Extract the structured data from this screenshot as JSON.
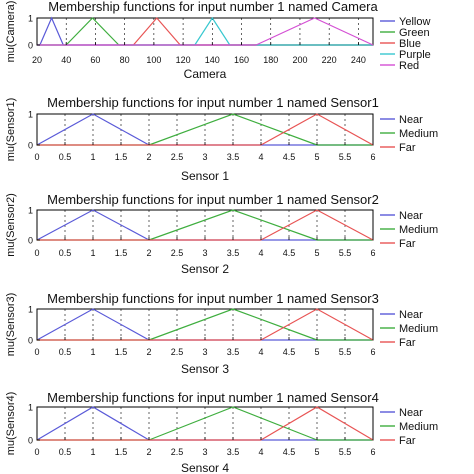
{
  "colors": {
    "yellow": "#5a5ad8",
    "green": "#3fae3f",
    "blue": "#e85454",
    "purple": "#38c8d0",
    "red": "#d450d4",
    "near": "#5a5ad8",
    "medium": "#3fae3f",
    "far": "#e85454"
  },
  "chart_data": [
    {
      "type": "line",
      "title": "Membership functions for input number 1 named Camera",
      "xlabel": "Camera",
      "ylabel": "mu(Camera)",
      "xlim": [
        20,
        250
      ],
      "ylim": [
        0,
        1
      ],
      "xticks": [
        20,
        40,
        60,
        80,
        100,
        120,
        140,
        160,
        180,
        200,
        220,
        240
      ],
      "yticks": [
        0,
        1
      ],
      "legend_position": "right",
      "series": [
        {
          "name": "Yellow",
          "color_key": "yellow",
          "x": [
            22,
            30,
            38
          ],
          "y": [
            0,
            1,
            0
          ]
        },
        {
          "name": "Green",
          "color_key": "green",
          "x": [
            40,
            58,
            76
          ],
          "y": [
            0,
            1,
            0
          ]
        },
        {
          "name": "Blue",
          "color_key": "blue",
          "x": [
            86,
            102,
            118
          ],
          "y": [
            0,
            1,
            0
          ]
        },
        {
          "name": "Purple",
          "color_key": "purple",
          "x": [
            128,
            140,
            152
          ],
          "y": [
            0,
            1,
            0
          ]
        },
        {
          "name": "Red",
          "color_key": "red",
          "x": [
            170,
            210,
            250
          ],
          "y": [
            0,
            1,
            0
          ]
        }
      ]
    },
    {
      "type": "line",
      "title": "Membership functions for input number 1 named Sensor1",
      "xlabel": "Sensor 1",
      "ylabel": "mu(Sensor1)",
      "xlim": [
        0,
        6
      ],
      "ylim": [
        0,
        1
      ],
      "xticks": [
        0,
        0.5,
        1,
        1.5,
        2,
        2.5,
        3,
        3.5,
        4,
        4.5,
        5,
        5.5,
        6
      ],
      "yticks": [
        0,
        1
      ],
      "legend_position": "right",
      "series": [
        {
          "name": "Near",
          "color_key": "near",
          "x": [
            0,
            1,
            2
          ],
          "y": [
            0,
            1,
            0
          ]
        },
        {
          "name": "Medium",
          "color_key": "medium",
          "x": [
            2,
            3.5,
            5
          ],
          "y": [
            0,
            1,
            0
          ]
        },
        {
          "name": "Far",
          "color_key": "far",
          "x": [
            4,
            5,
            6
          ],
          "y": [
            0,
            1,
            0
          ]
        }
      ]
    },
    {
      "type": "line",
      "title": "Membership functions for input number 1 named Sensor2",
      "xlabel": "Sensor 2",
      "ylabel": "mu(Sensor2)",
      "xlim": [
        0,
        6
      ],
      "ylim": [
        0,
        1
      ],
      "xticks": [
        0,
        0.5,
        1,
        1.5,
        2,
        2.5,
        3,
        3.5,
        4,
        4.5,
        5,
        5.5,
        6
      ],
      "yticks": [
        0,
        1
      ],
      "legend_position": "right",
      "series": [
        {
          "name": "Near",
          "color_key": "near",
          "x": [
            0,
            1,
            2
          ],
          "y": [
            0,
            1,
            0
          ]
        },
        {
          "name": "Medium",
          "color_key": "medium",
          "x": [
            2,
            3.5,
            5
          ],
          "y": [
            0,
            1,
            0
          ]
        },
        {
          "name": "Far",
          "color_key": "far",
          "x": [
            4,
            5,
            6
          ],
          "y": [
            0,
            1,
            0
          ]
        }
      ]
    },
    {
      "type": "line",
      "title": "Membership functions for input number 1 named Sensor3",
      "xlabel": "Sensor 3",
      "ylabel": "mu(Sensor3)",
      "xlim": [
        0,
        6
      ],
      "ylim": [
        0,
        1
      ],
      "xticks": [
        0,
        0.5,
        1,
        1.5,
        2,
        2.5,
        3,
        3.5,
        4,
        4.5,
        5,
        5.5,
        6
      ],
      "yticks": [
        0,
        1
      ],
      "legend_position": "right",
      "series": [
        {
          "name": "Near",
          "color_key": "near",
          "x": [
            0,
            1,
            2
          ],
          "y": [
            0,
            1,
            0
          ]
        },
        {
          "name": "Medium",
          "color_key": "medium",
          "x": [
            2,
            3.5,
            5
          ],
          "y": [
            0,
            1,
            0
          ]
        },
        {
          "name": "Far",
          "color_key": "far",
          "x": [
            4,
            5,
            6
          ],
          "y": [
            0,
            1,
            0
          ]
        }
      ]
    },
    {
      "type": "line",
      "title": "Membership functions for input number 1 named Sensor4",
      "xlabel": "Sensor 4",
      "ylabel": "mu(Sensor4)",
      "xlim": [
        0,
        6
      ],
      "ylim": [
        0,
        1
      ],
      "xticks": [
        0,
        0.5,
        1,
        1.5,
        2,
        2.5,
        3,
        3.5,
        4,
        4.5,
        5,
        5.5,
        6
      ],
      "yticks": [
        0,
        1
      ],
      "legend_position": "right",
      "series": [
        {
          "name": "Near",
          "color_key": "near",
          "x": [
            0,
            1,
            2
          ],
          "y": [
            0,
            1,
            0
          ]
        },
        {
          "name": "Medium",
          "color_key": "medium",
          "x": [
            2,
            3.5,
            5
          ],
          "y": [
            0,
            1,
            0
          ]
        },
        {
          "name": "Far",
          "color_key": "far",
          "x": [
            4,
            5,
            6
          ],
          "y": [
            0,
            1,
            0
          ]
        }
      ]
    }
  ]
}
